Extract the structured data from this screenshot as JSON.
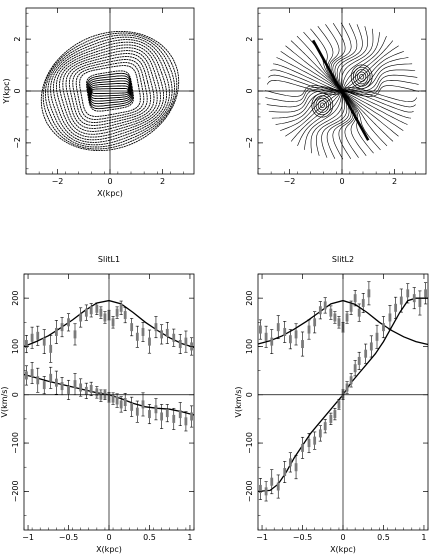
{
  "chart_data": [
    {
      "type": "contour",
      "title": "",
      "xlabel": "X(kpc)",
      "ylabel": "Y(kpc)",
      "xlim": [
        -3.2,
        3.2
      ],
      "ylim": [
        -3.2,
        3.2
      ],
      "xticks": [
        -2,
        0,
        2
      ],
      "yticks": [
        -2,
        0,
        2
      ],
      "contours": {
        "description": "nested closed orbits, outermost ellipse tilted, inner bar-like shapes",
        "n_levels": 22,
        "outer_semi_major": 2.7,
        "outer_semi_minor": 2.2,
        "outer_tilt_deg": 25,
        "inner_bar_half_length": 0.6,
        "inner_bar_angle_deg": 0
      }
    },
    {
      "type": "contour",
      "title": "",
      "xlabel": "",
      "ylabel": "",
      "xlim": [
        -3.2,
        3.2
      ],
      "ylim": [
        -3.2,
        3.2
      ],
      "xticks": [
        -2,
        0,
        2
      ],
      "yticks": [
        -2,
        0,
        2
      ],
      "bar": {
        "x1": -1.1,
        "y1": 1.95,
        "x2": 1.0,
        "y2": -1.9
      },
      "centers": [
        {
          "x": 0.75,
          "y": 0.55,
          "sign": 1
        },
        {
          "x": -0.75,
          "y": -0.55,
          "sign": -1
        }
      ]
    },
    {
      "type": "scatter-line",
      "title": "SlitL1",
      "xlabel": "X(kpc)",
      "ylabel": "V(km/s)",
      "xlim": [
        -1.05,
        1.05
      ],
      "ylim": [
        -280,
        250
      ],
      "xticks": [
        -1,
        -0.5,
        0,
        0.5,
        1
      ],
      "xticklabels": [
        "−1",
        "−0.5",
        "0",
        "0.5",
        "1"
      ],
      "yticks": [
        -200,
        -100,
        0,
        100,
        200
      ],
      "yticklabels": [
        "−200",
        "−100",
        "0",
        "100",
        "200"
      ],
      "series": [
        {
          "kind": "model-sigma",
          "x": [
            -1.05,
            -0.9,
            -0.75,
            -0.6,
            -0.45,
            -0.3,
            -0.15,
            0.0,
            0.15,
            0.3,
            0.45,
            0.6,
            0.75,
            0.9,
            1.05
          ],
          "y": [
            100,
            110,
            122,
            138,
            155,
            174,
            190,
            195,
            188,
            170,
            150,
            133,
            118,
            106,
            98
          ]
        },
        {
          "kind": "model-velocity",
          "x": [
            -1.05,
            -0.9,
            -0.75,
            -0.6,
            -0.45,
            -0.3,
            -0.15,
            0.0,
            0.15,
            0.3,
            0.45,
            0.6,
            0.75,
            0.9,
            1.05
          ],
          "y": [
            42,
            35,
            28,
            22,
            16,
            10,
            4,
            0,
            -8,
            -18,
            -25,
            -28,
            -30,
            -35,
            -42
          ]
        },
        {
          "kind": "data-sigma",
          "x": [
            -1.02,
            -0.95,
            -0.88,
            -0.8,
            -0.72,
            -0.65,
            -0.58,
            -0.5,
            -0.42,
            -0.35,
            -0.28,
            -0.22,
            -0.15,
            -0.1,
            -0.05,
            0.0,
            0.05,
            0.1,
            0.15,
            0.2,
            0.28,
            0.35,
            0.42,
            0.5,
            0.58,
            0.65,
            0.72,
            0.8,
            0.88,
            0.95,
            1.02
          ],
          "y": [
            105,
            118,
            122,
            110,
            95,
            130,
            140,
            150,
            125,
            160,
            170,
            175,
            178,
            170,
            160,
            165,
            150,
            170,
            180,
            165,
            140,
            120,
            130,
            110,
            140,
            125,
            128,
            118,
            105,
            110,
            100
          ],
          "err": [
            18,
            22,
            20,
            25,
            28,
            24,
            20,
            18,
            22,
            20,
            16,
            14,
            12,
            12,
            12,
            10,
            12,
            12,
            14,
            16,
            18,
            22,
            20,
            24,
            22,
            20,
            22,
            18,
            20,
            22,
            18
          ]
        },
        {
          "kind": "data-velocity",
          "x": [
            -1.02,
            -0.95,
            -0.88,
            -0.8,
            -0.72,
            -0.65,
            -0.58,
            -0.5,
            -0.42,
            -0.35,
            -0.28,
            -0.22,
            -0.15,
            -0.1,
            -0.05,
            0.0,
            0.05,
            0.1,
            0.15,
            0.2,
            0.28,
            0.35,
            0.42,
            0.5,
            0.58,
            0.65,
            0.72,
            0.8,
            0.88,
            0.95,
            1.02
          ],
          "y": [
            40,
            45,
            30,
            20,
            35,
            25,
            18,
            10,
            22,
            15,
            8,
            12,
            5,
            -2,
            0,
            -5,
            -8,
            -12,
            -20,
            -15,
            -25,
            -35,
            -20,
            -40,
            -30,
            -45,
            -38,
            -50,
            -40,
            -55,
            -45
          ],
          "err": [
            20,
            22,
            25,
            18,
            22,
            24,
            18,
            20,
            22,
            18,
            16,
            14,
            12,
            12,
            10,
            10,
            12,
            14,
            16,
            18,
            20,
            22,
            24,
            20,
            22,
            25,
            18,
            22,
            24,
            20,
            22
          ]
        }
      ]
    },
    {
      "type": "scatter-line",
      "title": "SlitL2",
      "xlabel": "X(kpc)",
      "ylabel": "V(km/s)",
      "xlim": [
        -1.05,
        1.05
      ],
      "ylim": [
        -280,
        250
      ],
      "xticks": [
        -1,
        -0.5,
        0,
        0.5,
        1
      ],
      "xticklabels": [
        "−1",
        "−0.5",
        "0",
        "0.5",
        "1"
      ],
      "yticks": [
        -200,
        -100,
        0,
        100,
        200
      ],
      "yticklabels": [
        "−200",
        "−100",
        "0",
        "100",
        "200"
      ],
      "series": [
        {
          "kind": "model-sigma",
          "x": [
            -1.05,
            -0.9,
            -0.75,
            -0.6,
            -0.45,
            -0.3,
            -0.15,
            0.0,
            0.15,
            0.3,
            0.45,
            0.6,
            0.75,
            0.9,
            1.05
          ],
          "y": [
            105,
            112,
            122,
            136,
            152,
            170,
            188,
            195,
            187,
            170,
            150,
            133,
            120,
            110,
            104
          ]
        },
        {
          "kind": "model-velocity",
          "x": [
            -1.05,
            -0.9,
            -0.8,
            -0.7,
            -0.6,
            -0.5,
            -0.4,
            -0.3,
            -0.2,
            -0.1,
            0.0,
            0.1,
            0.2,
            0.3,
            0.4,
            0.5,
            0.6,
            0.7,
            0.8,
            0.9,
            1.05
          ],
          "y": [
            -200,
            -198,
            -185,
            -160,
            -130,
            -105,
            -80,
            -60,
            -40,
            -20,
            0,
            25,
            45,
            65,
            85,
            110,
            140,
            170,
            195,
            200,
            200
          ]
        },
        {
          "kind": "data-sigma",
          "x": [
            -1.02,
            -0.95,
            -0.88,
            -0.8,
            -0.72,
            -0.65,
            -0.58,
            -0.5,
            -0.42,
            -0.35,
            -0.28,
            -0.22,
            -0.15,
            -0.1,
            -0.05,
            0.0,
            0.05,
            0.1,
            0.15,
            0.2,
            0.25,
            0.32
          ],
          "y": [
            135,
            120,
            110,
            140,
            130,
            115,
            125,
            105,
            135,
            150,
            175,
            185,
            170,
            160,
            150,
            140,
            160,
            180,
            200,
            170,
            190,
            210
          ],
          "err": [
            20,
            22,
            25,
            24,
            22,
            20,
            22,
            25,
            20,
            22,
            18,
            16,
            14,
            12,
            12,
            10,
            12,
            14,
            16,
            18,
            20,
            24
          ]
        },
        {
          "kind": "data-velocity",
          "x": [
            -1.02,
            -0.95,
            -0.88,
            -0.8,
            -0.72,
            -0.65,
            -0.58,
            -0.5,
            -0.42,
            -0.35,
            -0.28,
            -0.22,
            -0.15,
            -0.1,
            -0.05,
            0.0,
            0.05,
            0.1,
            0.15,
            0.2,
            0.28,
            0.35,
            0.42,
            0.5,
            0.58,
            0.65,
            0.72,
            0.8,
            0.88,
            0.95,
            1.02
          ],
          "y": [
            -195,
            -200,
            -180,
            -190,
            -160,
            -140,
            -150,
            -110,
            -100,
            -95,
            -80,
            -65,
            -50,
            -40,
            -20,
            0,
            15,
            30,
            55,
            70,
            85,
            100,
            120,
            140,
            160,
            180,
            195,
            210,
            200,
            190,
            210
          ],
          "err": [
            22,
            20,
            25,
            24,
            22,
            20,
            24,
            22,
            20,
            18,
            16,
            14,
            12,
            12,
            10,
            10,
            12,
            14,
            16,
            18,
            20,
            22,
            24,
            22,
            25,
            22,
            24,
            20,
            22,
            25,
            22
          ]
        }
      ]
    }
  ]
}
